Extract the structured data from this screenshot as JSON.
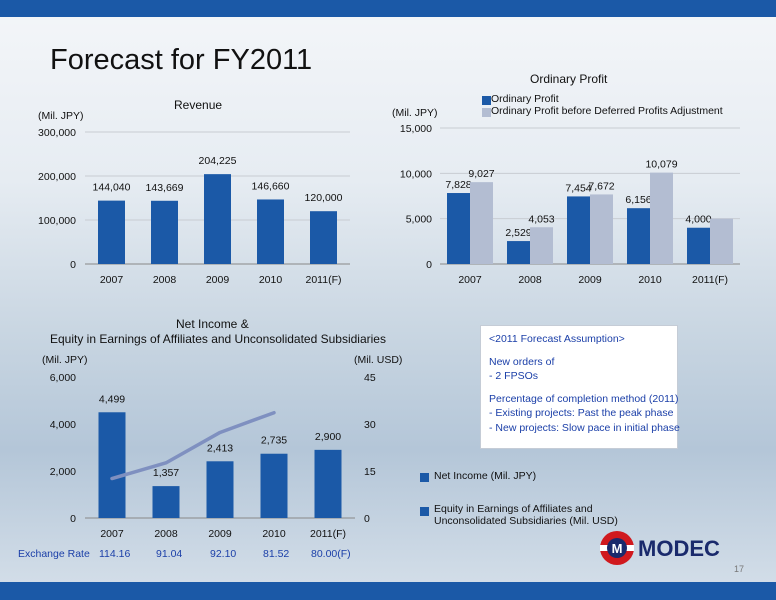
{
  "slide": {
    "title": "Forecast for FY2011",
    "page_number": "17"
  },
  "colors": {
    "primary": "#1b59a7",
    "secondary": "#b3bdd2",
    "line": "#7f90c0"
  },
  "chart_data": [
    {
      "type": "bar",
      "title": "Revenue",
      "ylabel": "(Mil. JPY)",
      "ylim": [
        0,
        300000
      ],
      "yticks": [
        "0",
        "100,000",
        "200,000",
        "300,000"
      ],
      "categories": [
        "2007",
        "2008",
        "2009",
        "2010",
        "2011(F)"
      ],
      "values": [
        144040,
        143669,
        204225,
        146660,
        120000
      ],
      "data_labels": [
        "144,040",
        "143,669",
        "204,225",
        "146,660",
        "120,000"
      ]
    },
    {
      "type": "bar",
      "title": "Ordinary Profit",
      "ylabel": "(Mil. JPY)",
      "ylim": [
        0,
        15000
      ],
      "yticks": [
        "0",
        "5,000",
        "10,000",
        "15,000"
      ],
      "categories": [
        "2007",
        "2008",
        "2009",
        "2010",
        "2011(F)"
      ],
      "series": [
        {
          "name": "Ordinary Profit",
          "values": [
            7828,
            2529,
            7454,
            6156,
            4000
          ],
          "data_labels": [
            "7,828",
            "2,529",
            "7,454",
            "6,156",
            "4,000"
          ]
        },
        {
          "name": "Ordinary Profit before Deferred Profits Adjustment",
          "values": [
            9027,
            4053,
            7672,
            10079,
            5000
          ],
          "data_labels": [
            "9,027",
            "4,053",
            "7,672",
            "10,079",
            ""
          ]
        }
      ],
      "legend": "top"
    },
    {
      "type": "bar",
      "title_line1": "Net Income &",
      "title_line2": "Equity in Earnings of Affiliates and Unconsolidated Subsidiaries",
      "ylabel": "(Mil. JPY)",
      "y2label": "(Mil. USD)",
      "ylim": [
        0,
        6000
      ],
      "y2lim": [
        0,
        45
      ],
      "yticks": [
        "0",
        "2,000",
        "4,000",
        "6,000"
      ],
      "y2ticks": [
        "0",
        "15",
        "30",
        "45"
      ],
      "categories": [
        "2007",
        "2008",
        "2009",
        "2010",
        "2011(F)"
      ],
      "series": [
        {
          "name": "Net Income (Mil. JPY)",
          "type": "bar",
          "values": [
            4499,
            1357,
            2413,
            2735,
            2900
          ],
          "data_labels": [
            "4,499",
            "1,357",
            "2,413",
            "2,735",
            "2,900"
          ]
        },
        {
          "name_line1": "Equity in Earnings of Affiliates and",
          "name_line2": "Unconsolidated Subsidiaries (Mil. USD)",
          "type": "line",
          "axis": "secondary",
          "values": [
            12.6,
            17.6,
            27.3,
            33.6,
            null
          ]
        }
      ],
      "legend": "right"
    }
  ],
  "assumption": {
    "heading": "<2011 Forecast Assumption>",
    "line1": "New orders of",
    "line2": "- 2 FPSOs",
    "line3": "Percentage of completion method (2011)",
    "line4": "- Existing projects: Past the peak phase",
    "line5": "- New projects: Slow pace in initial phase"
  },
  "exchange_rate": {
    "label": "Exchange Rate",
    "values": [
      "114.16",
      "91.04",
      "92.10",
      "81.52",
      "80.00(F)"
    ]
  },
  "logo": {
    "text": "MODEC",
    "mark": "M"
  }
}
